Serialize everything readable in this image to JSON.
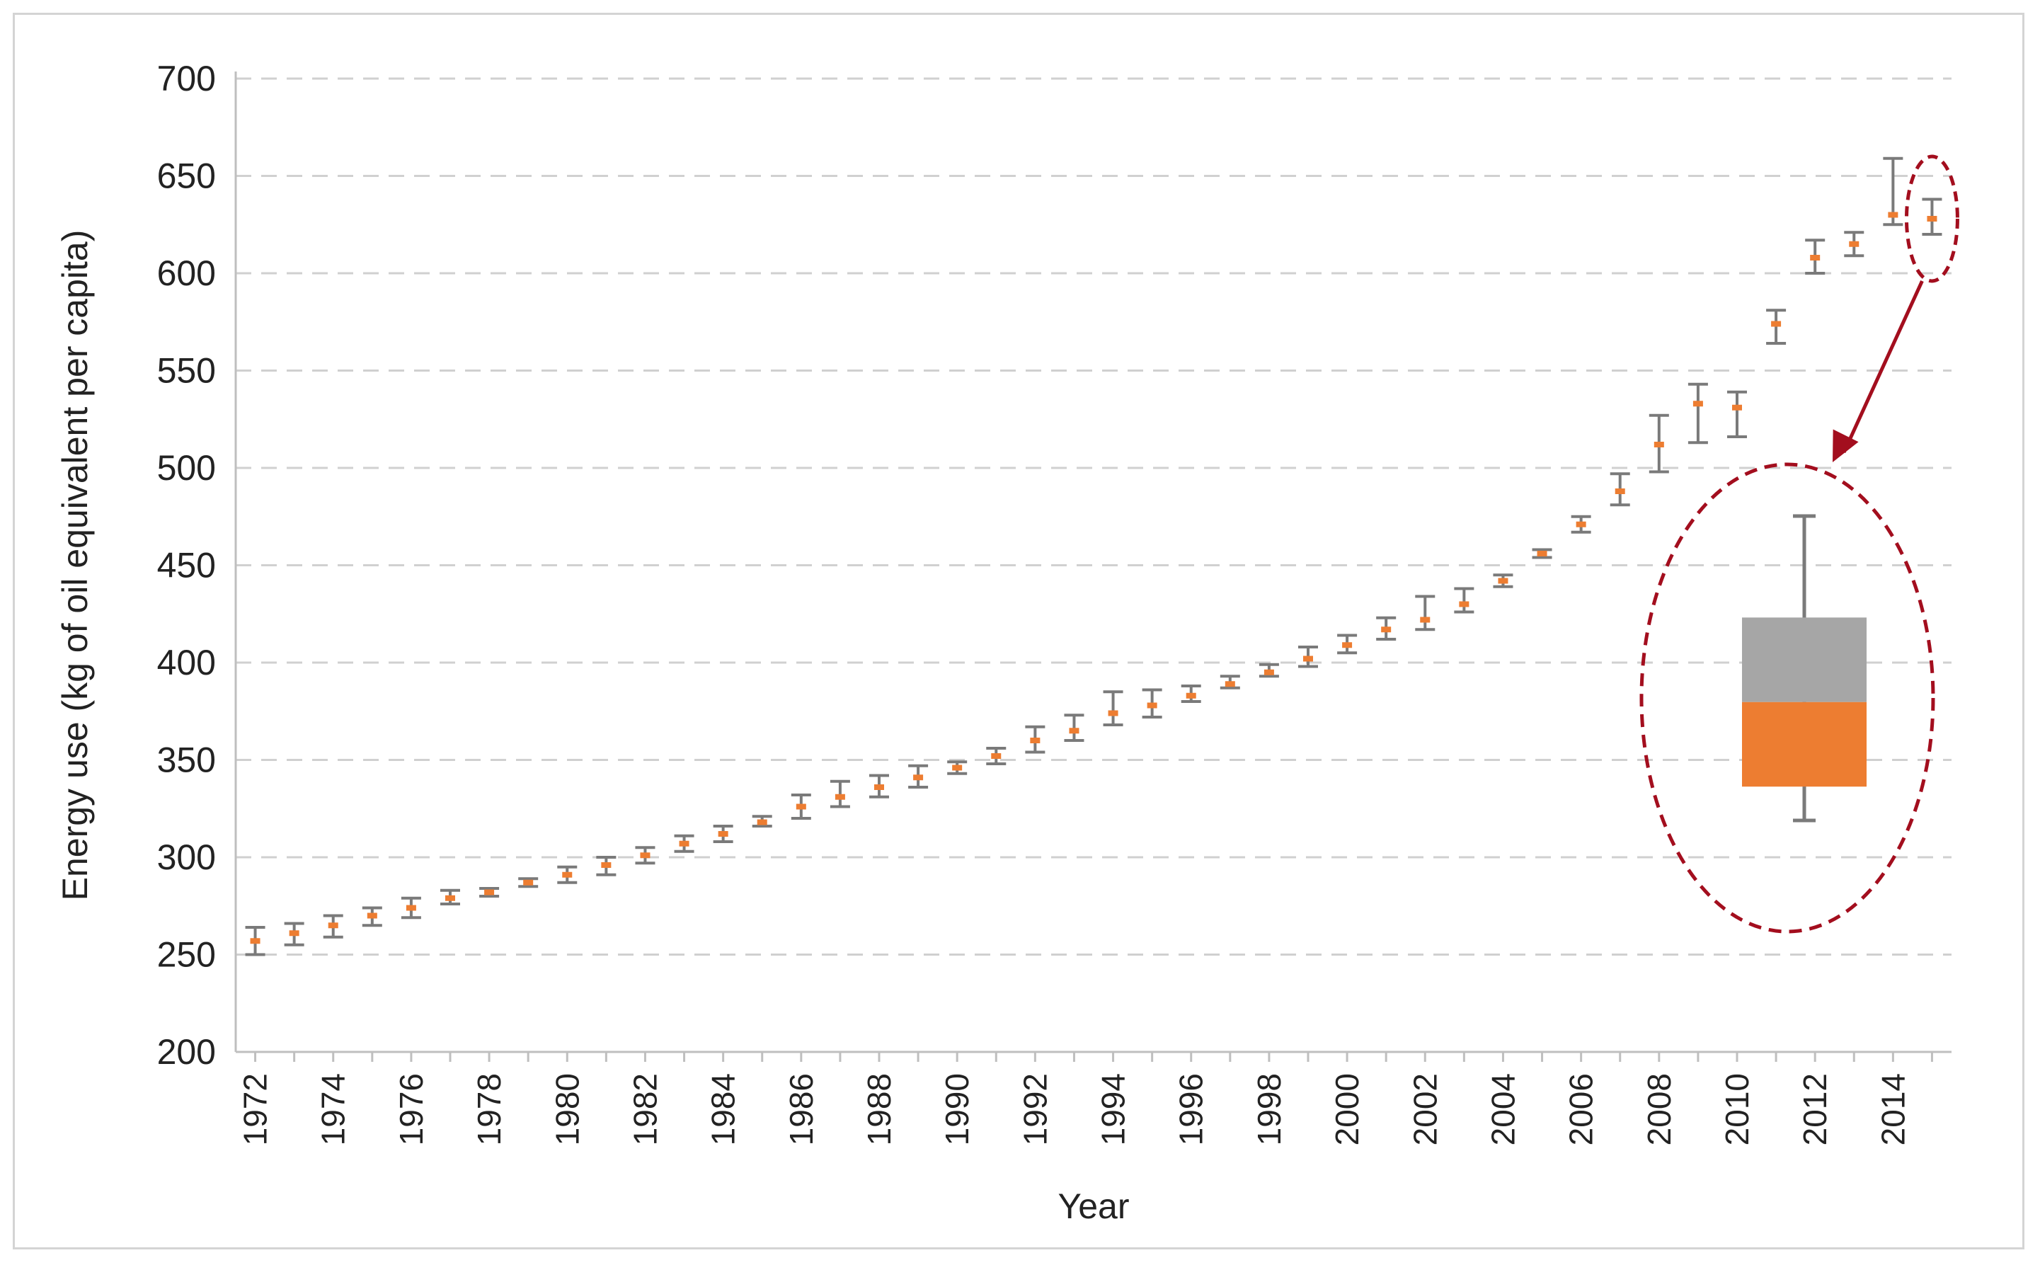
{
  "chart_data": {
    "type": "scatter",
    "title": "",
    "xlabel": "Year",
    "ylabel": "Energy use (kg of oil equivalent per capita)",
    "xlim": [
      1971.5,
      2015.5
    ],
    "ylim": [
      200,
      700
    ],
    "y_ticks": [
      "200",
      "250",
      "300",
      "350",
      "400",
      "450",
      "500",
      "550",
      "600",
      "650",
      "700"
    ],
    "x_ticks": [
      "1972",
      "1974",
      "1976",
      "1978",
      "1980",
      "1982",
      "1984",
      "1986",
      "1988",
      "1990",
      "1992",
      "1994",
      "1996",
      "1998",
      "2000",
      "2002",
      "2004",
      "2006",
      "2008",
      "2010",
      "2012",
      "2014"
    ],
    "grid": "horizontal dashed",
    "series": [
      {
        "x": [
          1972,
          1973,
          1974,
          1975,
          1976,
          1977,
          1978,
          1979,
          1980,
          1981,
          1982,
          1983,
          1984,
          1985,
          1986,
          1987,
          1988,
          1989,
          1990,
          1991,
          1992,
          1993,
          1994,
          1995,
          1996,
          1997,
          1998,
          1999,
          2000,
          2001,
          2002,
          2003,
          2004,
          2005,
          2006,
          2007,
          2008,
          2009,
          2010,
          2011,
          2012,
          2013,
          2014,
          2015
        ],
        "y": [
          257,
          261,
          265,
          270,
          274,
          279,
          282,
          287,
          291,
          296,
          301,
          307,
          312,
          318,
          326,
          331,
          336,
          341,
          346,
          352,
          360,
          365,
          374,
          378,
          383,
          389,
          395,
          402,
          409,
          417,
          422,
          430,
          442,
          456,
          471,
          488,
          512,
          533,
          531,
          574,
          608,
          615,
          630,
          628
        ],
        "lower": [
          250,
          255,
          259,
          265,
          269,
          276,
          280,
          285,
          287,
          291,
          297,
          303,
          308,
          316,
          320,
          326,
          331,
          336,
          343,
          348,
          354,
          360,
          368,
          372,
          380,
          387,
          393,
          398,
          405,
          412,
          417,
          426,
          439,
          454,
          467,
          481,
          498,
          513,
          516,
          564,
          600,
          609,
          625,
          620
        ],
        "upper": [
          264,
          266,
          270,
          274,
          279,
          283,
          284,
          289,
          295,
          300,
          305,
          311,
          316,
          321,
          332,
          339,
          342,
          347,
          349,
          356,
          367,
          373,
          385,
          386,
          388,
          393,
          399,
          408,
          414,
          423,
          434,
          438,
          445,
          458,
          475,
          497,
          527,
          543,
          539,
          581,
          617,
          621,
          659,
          638
        ]
      }
    ],
    "inset": {
      "description_marks": "zoomed error bar with stacked box for 2015",
      "whisker_high": 638,
      "whisker_low": 620,
      "box_gray": [
        627,
        632
      ],
      "box_orange": [
        622,
        627
      ]
    },
    "colors": {
      "error_bar": "#7a7a7a",
      "marker": "#ed7d31",
      "gridline": "#d0d0d0",
      "highlight": "#a30e1e"
    }
  }
}
